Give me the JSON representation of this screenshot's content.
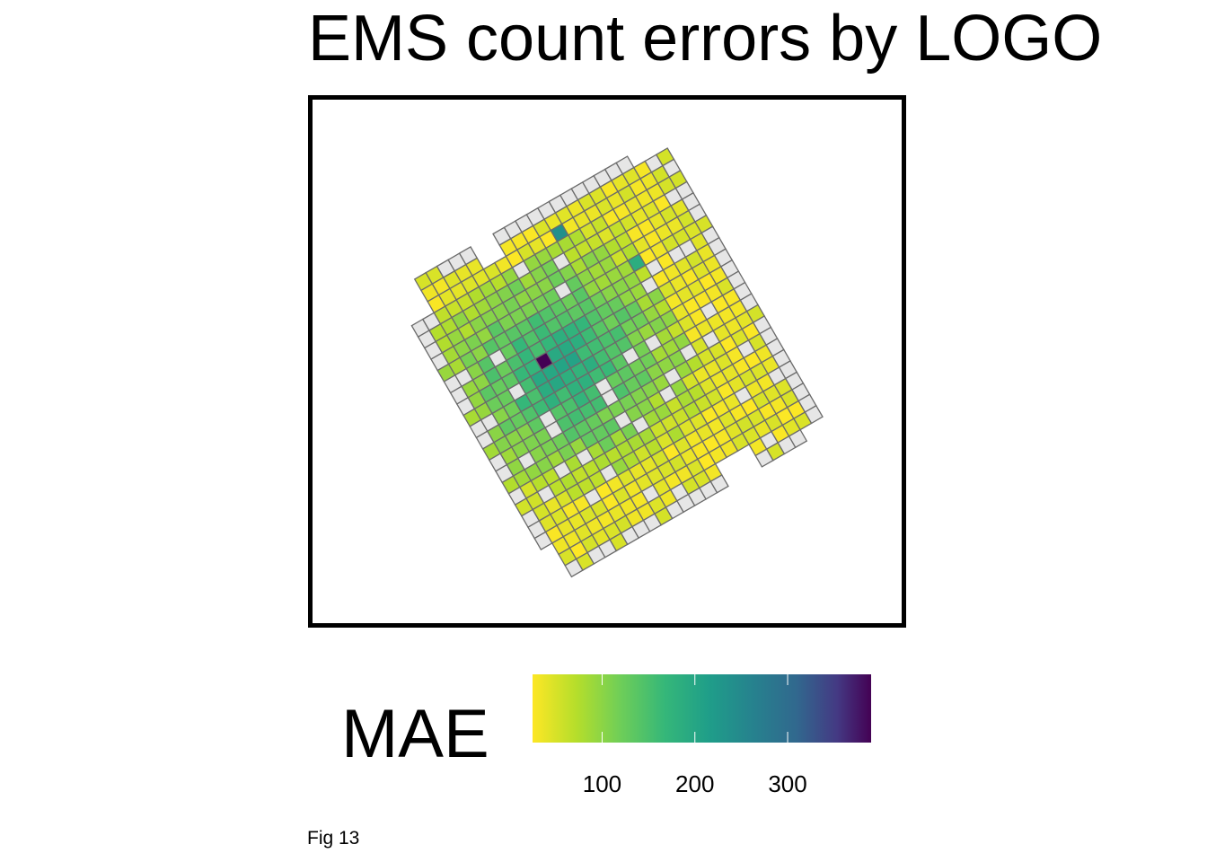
{
  "title": "EMS count errors by LOGO ",
  "caption": "Fig 13",
  "chart_data": {
    "type": "heatmap",
    "title": "EMS count errors by LOGO ",
    "description": "Choropleth of MAE on a rotated square grid; grey cells have no data",
    "grid_rows": 26,
    "grid_cols": 24,
    "value_range": [
      25,
      390
    ],
    "colormap": "viridis (reversed: low = yellow, high = purple)",
    "missing_color": "#e6e6e6",
    "outline_color": "#6b6b6b",
    "notable_cells": [
      {
        "row": 10,
        "col": 7,
        "value": 390
      },
      {
        "row": 2,
        "col": 13,
        "value": 230
      },
      {
        "row": 7,
        "col": 17,
        "value": 180
      }
    ]
  },
  "legend": {
    "title": "MAE",
    "min": 25,
    "max": 390,
    "ticks": [
      {
        "value": 100,
        "label": "100"
      },
      {
        "value": 200,
        "label": "200"
      },
      {
        "value": 300,
        "label": "300"
      }
    ]
  }
}
